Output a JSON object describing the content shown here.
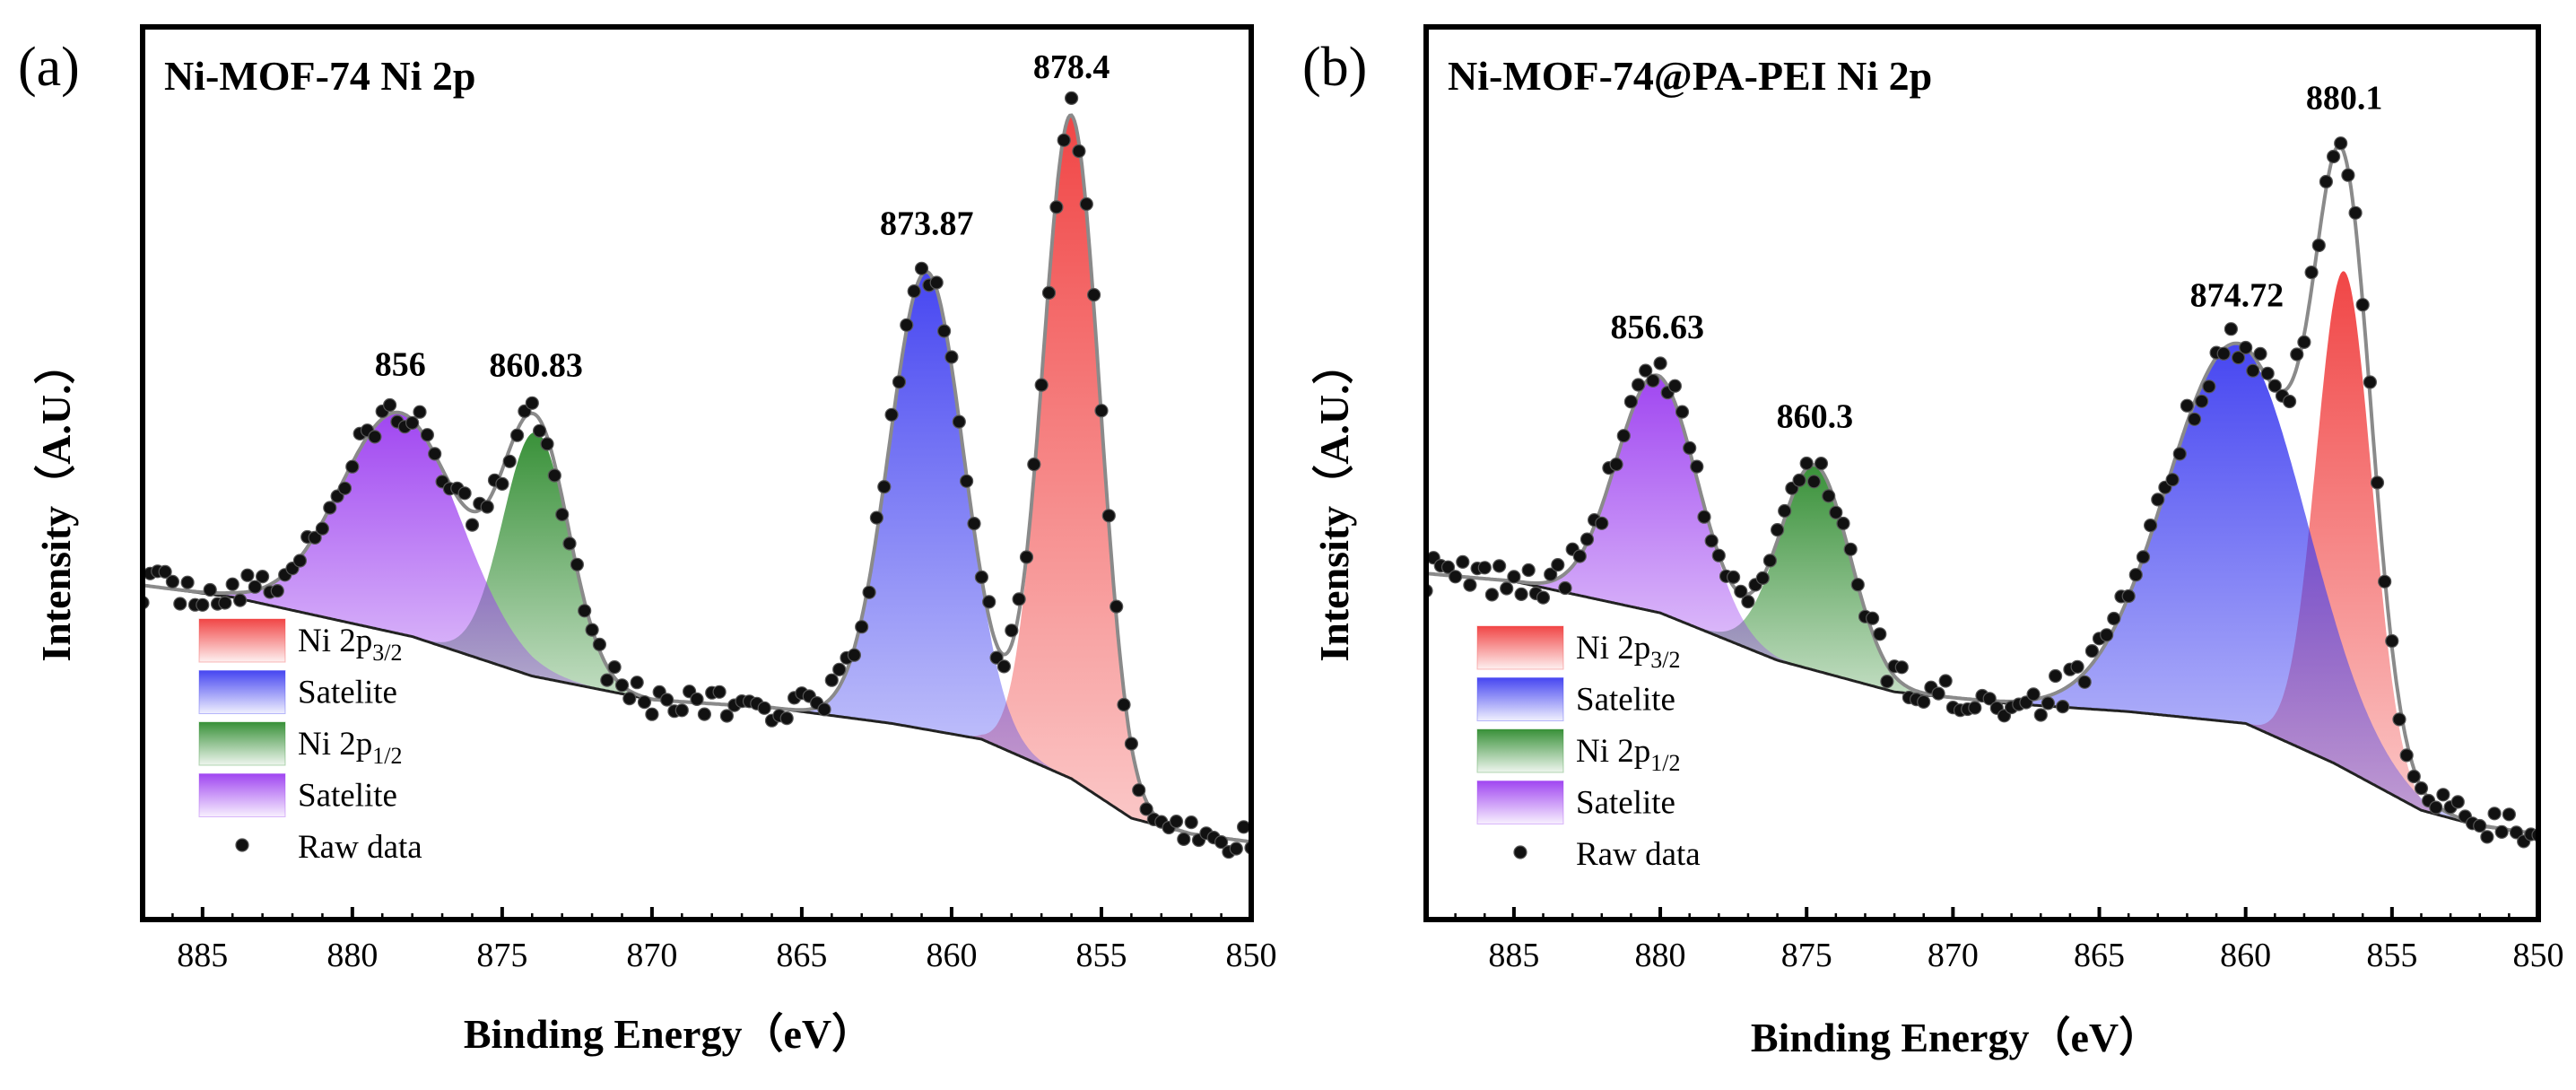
{
  "chart_data": [
    {
      "type": "line",
      "panel_label": "(a)",
      "title": "Ni-MOF-74  Ni 2p",
      "xlabel": "Binding Energy（eV）",
      "ylabel": "Intensity（A.U.）",
      "xlim": [
        887,
        850
      ],
      "xticks": [
        885,
        880,
        875,
        870,
        865,
        860,
        855,
        850
      ],
      "ylim": [
        0,
        1
      ],
      "ylim_note": "intensity in arbitrary units, normalized 0-1 (no y tick labels shown)",
      "baseline": [
        [
          887,
          0.395
        ],
        [
          884,
          0.38
        ],
        [
          878,
          0.33
        ],
        [
          874,
          0.28
        ],
        [
          870,
          0.25
        ],
        [
          866,
          0.24
        ],
        [
          862,
          0.22
        ],
        [
          859,
          0.2
        ],
        [
          856,
          0.15
        ],
        [
          854,
          0.1
        ],
        [
          852,
          0.08
        ],
        [
          850,
          0.07
        ]
      ],
      "peaks": [
        {
          "name": "Ni 2p3/2",
          "center": 856,
          "amplitude": 0.84,
          "sigma": 0.95,
          "color": "#f03c3c"
        },
        {
          "name": "Satelite",
          "center": 860.83,
          "amplitude": 0.58,
          "sigma": 1.25,
          "color": "#3c3cf0"
        },
        {
          "name": "Ni 2p1/2",
          "center": 873.87,
          "amplitude": 0.31,
          "sigma": 1.1,
          "color": "#2e8b2e"
        },
        {
          "name": "Satelite",
          "center": 878.4,
          "amplitude": 0.28,
          "sigma": 2.0,
          "color": "#9b3cf0"
        }
      ],
      "peak_labels": [
        "878.4",
        "873.87",
        "860.83",
        "856"
      ],
      "legend": {
        "position": "bottom-left",
        "entries": [
          {
            "label": "Ni 2p",
            "sub": "3/2",
            "color": "#f03c3c"
          },
          {
            "label": "Satelite",
            "sub": "",
            "color": "#3c3cf0"
          },
          {
            "label": "Ni 2p",
            "sub": "1/2",
            "color": "#2e8b2e"
          },
          {
            "label": "Satelite",
            "sub": "",
            "color": "#9b3cf0"
          },
          {
            "label": "Raw data",
            "sub": "",
            "color": "#000000"
          }
        ]
      },
      "noise_amplitude": 0.022,
      "raw_step": 0.25
    },
    {
      "type": "line",
      "panel_label": "(b)",
      "title": "Ni-MOF-74@PA-PEI  Ni 2p",
      "xlabel": "Binding Energy（eV）",
      "ylabel": "Intensity（A.U.）",
      "xlim": [
        888,
        850
      ],
      "xticks": [
        885,
        880,
        875,
        870,
        865,
        860,
        855,
        850
      ],
      "ylim": [
        0,
        1
      ],
      "ylim_note": "intensity in arbitrary units, normalized 0-1 (no y tick labels shown)",
      "baseline": [
        [
          888,
          0.41
        ],
        [
          885,
          0.4
        ],
        [
          880,
          0.36
        ],
        [
          876,
          0.3
        ],
        [
          872,
          0.26
        ],
        [
          868,
          0.245
        ],
        [
          864,
          0.235
        ],
        [
          860,
          0.22
        ],
        [
          857,
          0.17
        ],
        [
          854,
          0.11
        ],
        [
          852,
          0.09
        ],
        [
          850,
          0.08
        ]
      ],
      "peaks": [
        {
          "name": "Ni 2p3/2",
          "center": 856.63,
          "amplitude": 0.63,
          "sigma": 0.95,
          "color": "#f03c3c"
        },
        {
          "name": "Satelite",
          "center": 860.3,
          "amplitude": 0.48,
          "sigma": 2.4,
          "color": "#3c3cf0"
        },
        {
          "name": "Ni 2p1/2",
          "center": 874.72,
          "amplitude": 0.26,
          "sigma": 1.2,
          "color": "#2e8b2e"
        },
        {
          "name": "Satelite",
          "center": 880.1,
          "amplitude": 0.3,
          "sigma": 1.4,
          "color": "#9b3cf0"
        }
      ],
      "peak_labels": [
        "880.1",
        "874.72",
        "860.3",
        "856.63"
      ],
      "legend": {
        "position": "bottom-left",
        "entries": [
          {
            "label": "Ni 2p",
            "sub": "3/2",
            "color": "#f03c3c"
          },
          {
            "label": "Satelite",
            "sub": "",
            "color": "#3c3cf0"
          },
          {
            "label": "Ni 2p",
            "sub": "1/2",
            "color": "#2e8b2e"
          },
          {
            "label": "Satelite",
            "sub": "",
            "color": "#9b3cf0"
          },
          {
            "label": "Raw data",
            "sub": "",
            "color": "#000000"
          }
        ]
      },
      "noise_amplitude": 0.022,
      "raw_step": 0.25
    }
  ]
}
